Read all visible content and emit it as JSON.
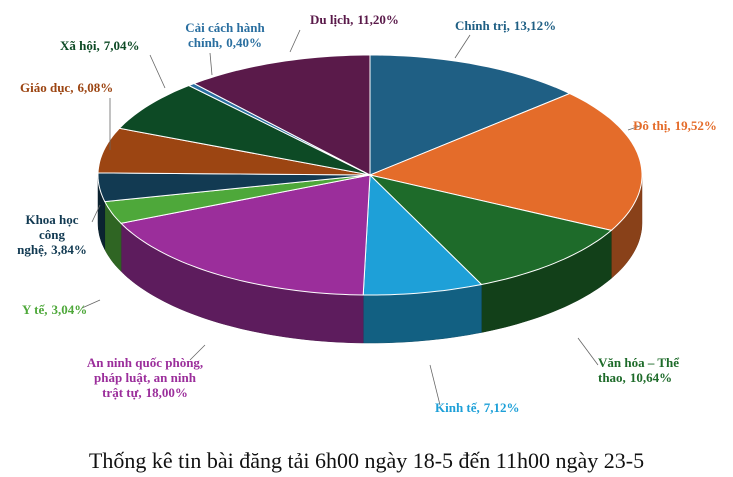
{
  "chart_data": {
    "type": "pie",
    "title": "Thống kê tin bài đăng tải 6h00 ngày 18-5 đến 11h00 ngày 23-5",
    "categories": [
      "Chính trị,",
      "Đô thị,",
      "Văn hóa – Thể thao,",
      "Kinh tế,",
      "An ninh quốc phòng, pháp luật, an ninh trật tự,",
      "Y tế,",
      "Khoa học công nghệ,",
      "Giáo dục,",
      "Xã hội,",
      "Cải cách hành chính,",
      "Du lịch,"
    ],
    "values": [
      13.12,
      19.52,
      10.64,
      7.12,
      18.0,
      3.04,
      3.84,
      6.08,
      7.04,
      0.4,
      11.2
    ],
    "value_labels": [
      "13,12%",
      "19,52%",
      "10,64%",
      "7,12%",
      "18,00%",
      "3,04%",
      "3,84%",
      "6,08%",
      "7,04%",
      "0,40%",
      "11,20%"
    ],
    "colors": [
      "#1f5f84",
      "#e46c2a",
      "#1e6b2a",
      "#1ea0d8",
      "#9b2e9b",
      "#4ea83a",
      "#123a52",
      "#9c4512",
      "#0d4a25",
      "#2a6fa0",
      "#5a1a4a"
    ]
  }
}
